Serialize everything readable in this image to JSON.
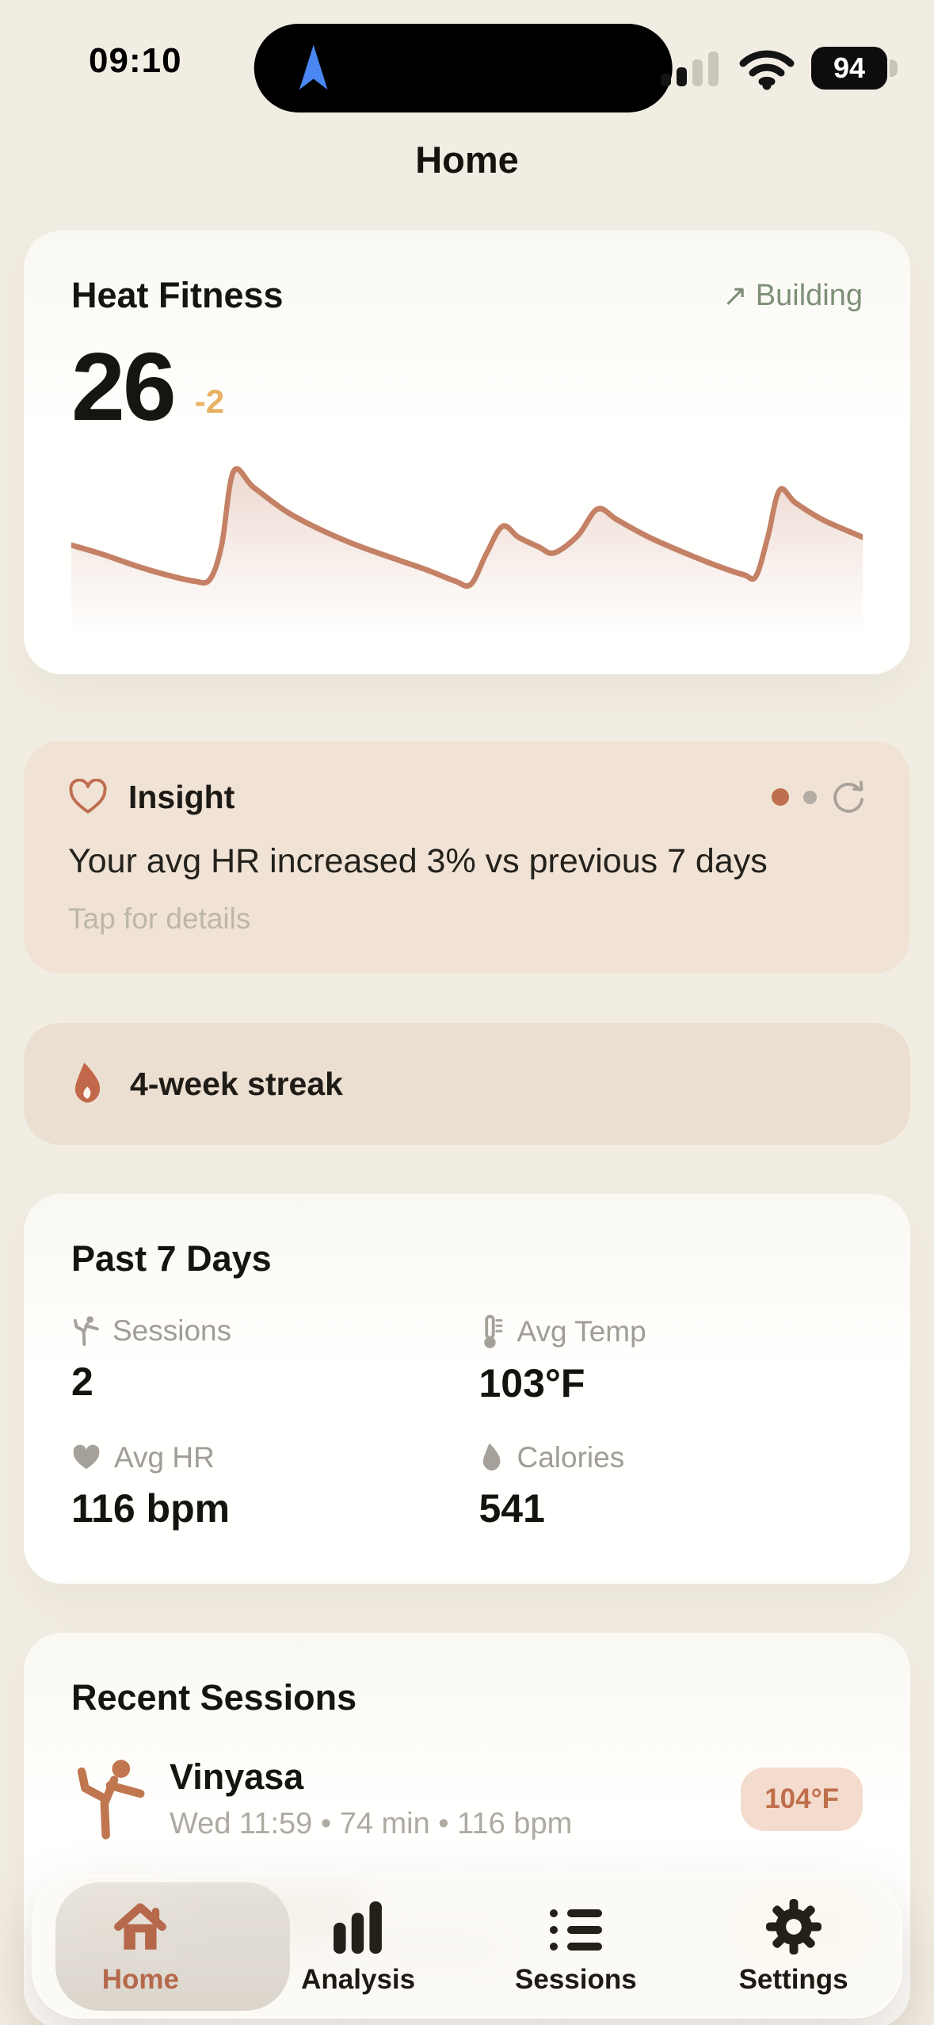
{
  "status_bar": {
    "time": "09:10",
    "battery_percent": "94"
  },
  "header": {
    "title": "Home"
  },
  "heat_fitness_card": {
    "title": "Heat Fitness",
    "status_arrow": "↗",
    "status_label": "Building",
    "score": "26",
    "delta": "-2"
  },
  "chart_data": {
    "type": "area",
    "title": "Heat fitness trend sparkline",
    "axes_shown": false,
    "color": "#c48165",
    "fill_top": "rgba(196,129,102,0.30)",
    "points": [
      [
        0.0,
        0.5
      ],
      [
        0.04,
        0.44
      ],
      [
        0.08,
        0.37
      ],
      [
        0.12,
        0.31
      ],
      [
        0.155,
        0.27
      ],
      [
        0.175,
        0.28
      ],
      [
        0.19,
        0.5
      ],
      [
        0.205,
        0.97
      ],
      [
        0.23,
        0.87
      ],
      [
        0.27,
        0.72
      ],
      [
        0.31,
        0.61
      ],
      [
        0.36,
        0.5
      ],
      [
        0.41,
        0.41
      ],
      [
        0.45,
        0.34
      ],
      [
        0.485,
        0.27
      ],
      [
        0.505,
        0.25
      ],
      [
        0.525,
        0.45
      ],
      [
        0.545,
        0.62
      ],
      [
        0.565,
        0.55
      ],
      [
        0.59,
        0.49
      ],
      [
        0.61,
        0.45
      ],
      [
        0.64,
        0.56
      ],
      [
        0.665,
        0.73
      ],
      [
        0.69,
        0.66
      ],
      [
        0.73,
        0.55
      ],
      [
        0.78,
        0.44
      ],
      [
        0.82,
        0.36
      ],
      [
        0.85,
        0.31
      ],
      [
        0.865,
        0.3
      ],
      [
        0.88,
        0.55
      ],
      [
        0.895,
        0.85
      ],
      [
        0.915,
        0.77
      ],
      [
        0.95,
        0.66
      ],
      [
        1.0,
        0.55
      ]
    ]
  },
  "insight_card": {
    "title": "Insight",
    "body": "Your avg HR increased 3% vs previous 7 days",
    "hint": "Tap for details"
  },
  "streak_card": {
    "label": "4-week streak"
  },
  "past7_card": {
    "title": "Past 7 Days",
    "stats": [
      {
        "label": "Sessions",
        "value": "2"
      },
      {
        "label": "Avg Temp",
        "value": "103°F"
      },
      {
        "label": "Avg HR",
        "value": "116 bpm"
      },
      {
        "label": "Calories",
        "value": "541"
      }
    ]
  },
  "recent_card": {
    "title": "Recent Sessions",
    "sessions": [
      {
        "name": "Vinyasa",
        "meta": "Wed 11:59 • 74 min • 116 bpm",
        "temp_badge": "104°F"
      }
    ]
  },
  "tab_bar": {
    "items": [
      {
        "label": "Home",
        "active": true
      },
      {
        "label": "Analysis",
        "active": false
      },
      {
        "label": "Sessions",
        "active": false
      },
      {
        "label": "Settings",
        "active": false
      }
    ]
  },
  "colors": {
    "accent_terracotta": "#c06a48",
    "chart_line": "#c48165",
    "delta_amber": "#e9b263",
    "status_sage": "#7d9077",
    "badge_bg": "#f3dbcd",
    "badge_text": "#bf6f4b",
    "page_bg": "#f2ede3",
    "insight_bg": "#f0e3d6",
    "streak_bg": "#ebdfd1"
  }
}
